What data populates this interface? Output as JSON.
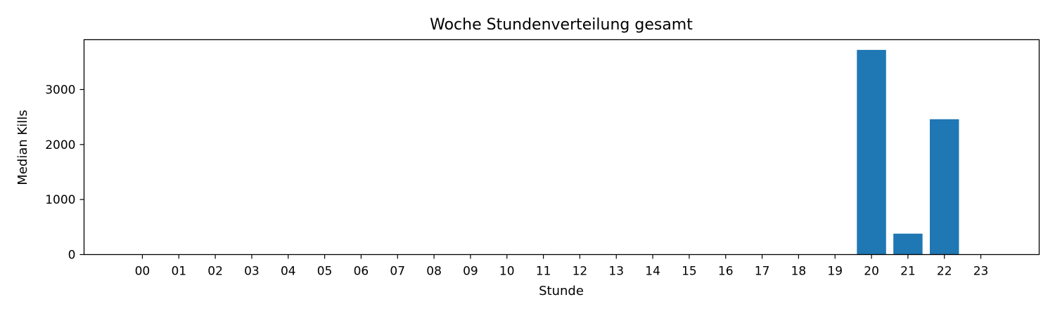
{
  "chart_data": {
    "type": "bar",
    "title": "Woche Stundenverteilung gesamt",
    "xlabel": "Stunde",
    "ylabel": "Median Kills",
    "categories": [
      "00",
      "01",
      "02",
      "03",
      "04",
      "05",
      "06",
      "07",
      "08",
      "09",
      "10",
      "11",
      "12",
      "13",
      "14",
      "15",
      "16",
      "17",
      "18",
      "19",
      "20",
      "21",
      "22",
      "23"
    ],
    "values": [
      0,
      0,
      0,
      0,
      0,
      0,
      0,
      0,
      0,
      0,
      0,
      0,
      0,
      0,
      0,
      0,
      0,
      0,
      0,
      0,
      3720,
      380,
      2460,
      0
    ],
    "yticks": [
      0,
      1000,
      2000,
      3000
    ],
    "ylim": [
      0,
      3906
    ],
    "grid": false,
    "bar_color": "#1f77b4"
  }
}
